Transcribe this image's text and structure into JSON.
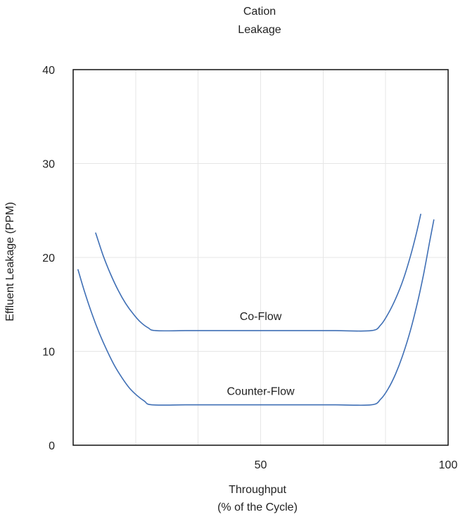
{
  "chart_data": {
    "type": "line",
    "title_lines": [
      "Cation",
      "Leakage"
    ],
    "xlabel_lines": [
      "Throughput",
      "(% of the Cycle)"
    ],
    "ylabel": "Effluent Leakage (PPM)",
    "xlim": [
      0,
      100
    ],
    "ylim": [
      0,
      40
    ],
    "x_ticks": [
      {
        "value": 50,
        "label": "50"
      },
      {
        "value": 100,
        "label": "100"
      }
    ],
    "y_ticks": [
      {
        "value": 0,
        "label": "0"
      },
      {
        "value": 10,
        "label": "10"
      },
      {
        "value": 20,
        "label": "20"
      },
      {
        "value": 30,
        "label": "30"
      },
      {
        "value": 40,
        "label": "40"
      }
    ],
    "x_gridlines": [
      16.7,
      33.3,
      50,
      66.7,
      83.3
    ],
    "y_gridlines": [
      10,
      20,
      30
    ],
    "grid": true,
    "line_color": "#3f6fb5",
    "series": [
      {
        "name": "Co-Flow",
        "label_at": [
          50,
          13.8
        ],
        "points": [
          [
            6,
            22.6
          ],
          [
            8,
            20.2
          ],
          [
            10,
            18.2
          ],
          [
            12,
            16.5
          ],
          [
            14,
            15.1
          ],
          [
            16,
            14.0
          ],
          [
            18,
            13.1
          ],
          [
            20,
            12.5
          ],
          [
            22,
            12.2
          ],
          [
            30,
            12.2
          ],
          [
            40,
            12.2
          ],
          [
            50,
            12.2
          ],
          [
            60,
            12.2
          ],
          [
            70,
            12.2
          ],
          [
            79.5,
            12.2
          ],
          [
            82,
            12.8
          ],
          [
            84,
            14.0
          ],
          [
            86,
            15.6
          ],
          [
            88,
            17.6
          ],
          [
            90,
            20.2
          ],
          [
            91.5,
            22.5
          ],
          [
            92.7,
            24.6
          ]
        ]
      },
      {
        "name": "Counter-Flow",
        "label_at": [
          50,
          5.8
        ],
        "points": [
          [
            1.3,
            18.7
          ],
          [
            3,
            16.4
          ],
          [
            5,
            14.0
          ],
          [
            7,
            11.9
          ],
          [
            9,
            10.1
          ],
          [
            11,
            8.5
          ],
          [
            13,
            7.2
          ],
          [
            15,
            6.1
          ],
          [
            17,
            5.3
          ],
          [
            19,
            4.7
          ],
          [
            21,
            4.3
          ],
          [
            30,
            4.3
          ],
          [
            40,
            4.3
          ],
          [
            50,
            4.3
          ],
          [
            60,
            4.3
          ],
          [
            70,
            4.3
          ],
          [
            79.5,
            4.3
          ],
          [
            82,
            4.9
          ],
          [
            84,
            6.0
          ],
          [
            86,
            7.6
          ],
          [
            88,
            9.7
          ],
          [
            90,
            12.3
          ],
          [
            92,
            15.5
          ],
          [
            93.5,
            18.3
          ],
          [
            95,
            21.5
          ],
          [
            96.2,
            24.0
          ]
        ]
      }
    ]
  }
}
